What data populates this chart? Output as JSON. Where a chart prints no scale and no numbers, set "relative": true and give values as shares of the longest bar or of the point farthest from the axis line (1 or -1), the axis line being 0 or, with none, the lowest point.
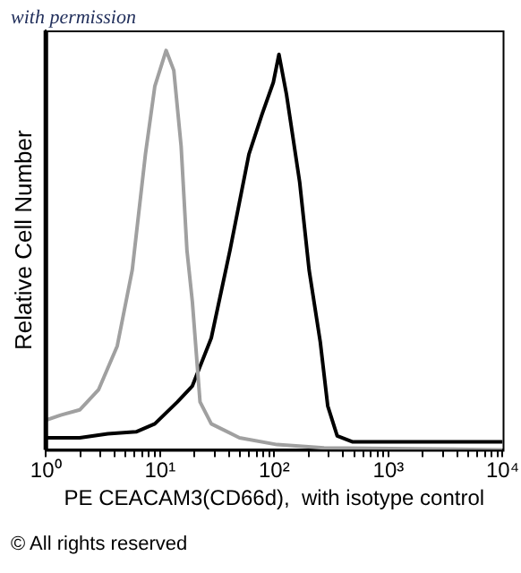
{
  "chart_data": {
    "type": "line",
    "relative": true,
    "log": "x",
    "xlabel": "PE CEACAM3(CD66d),  with isotype control",
    "ylabel": "Relative Cell Number",
    "annotations": [
      "with permission",
      "© All rights reserved"
    ],
    "xlim": [
      1,
      10000
    ],
    "xticks": [
      {
        "value": 1,
        "label": "10⁰"
      },
      {
        "value": 2,
        "label": null
      },
      {
        "value": 3,
        "label": null
      },
      {
        "value": 4,
        "label": null
      },
      {
        "value": 5,
        "label": null
      },
      {
        "value": 6,
        "label": null
      },
      {
        "value": 7,
        "label": null
      },
      {
        "value": 8,
        "label": null
      },
      {
        "value": 9,
        "label": null
      },
      {
        "value": 10,
        "label": "10¹"
      },
      {
        "value": 20,
        "label": null
      },
      {
        "value": 30,
        "label": null
      },
      {
        "value": 40,
        "label": null
      },
      {
        "value": 50,
        "label": null
      },
      {
        "value": 60,
        "label": null
      },
      {
        "value": 70,
        "label": null
      },
      {
        "value": 80,
        "label": null
      },
      {
        "value": 90,
        "label": null
      },
      {
        "value": 100,
        "label": "10²"
      },
      {
        "value": 200,
        "label": null
      },
      {
        "value": 300,
        "label": null
      },
      {
        "value": 400,
        "label": null
      },
      {
        "value": 500,
        "label": null
      },
      {
        "value": 600,
        "label": null
      },
      {
        "value": 700,
        "label": null
      },
      {
        "value": 800,
        "label": null
      },
      {
        "value": 900,
        "label": null
      },
      {
        "value": 1000,
        "label": "10³"
      },
      {
        "value": 2000,
        "label": null
      },
      {
        "value": 3000,
        "label": null
      },
      {
        "value": 4000,
        "label": null
      },
      {
        "value": 5000,
        "label": null
      },
      {
        "value": 6000,
        "label": null
      },
      {
        "value": 7000,
        "label": null
      },
      {
        "value": 8000,
        "label": null
      },
      {
        "value": 9000,
        "label": null
      },
      {
        "value": 10000,
        "label": "10⁴"
      }
    ],
    "grid": false,
    "legend": false,
    "marker": "none",
    "line_style": "solid",
    "series": [
      {
        "color": "#a0a0a0",
        "x": [
          1,
          1.35,
          1.98,
          2.89,
          4.22,
          5.71,
          7.45,
          9,
          11.3,
          13.2,
          15.3,
          17.2,
          19.2,
          22.4,
          28.1,
          49.6,
          106,
          273,
          10000
        ],
        "values": [
          0.074,
          0.087,
          0.1,
          0.15,
          0.26,
          0.45,
          0.74,
          0.91,
          1,
          0.95,
          0.76,
          0.5,
          0.37,
          0.12,
          0.065,
          0.03,
          0.013,
          0.005,
          0
        ]
      },
      {
        "color": "#000000",
        "x": [
          1,
          1.98,
          3.49,
          6.17,
          9,
          14.2,
          19.2,
          28.1,
          41,
          60,
          78.2,
          98.2,
          110,
          128,
          167,
          202,
          253,
          294,
          356,
          482,
          10000
        ],
        "values": [
          0.03,
          0.03,
          0.04,
          0.045,
          0.065,
          0.12,
          0.16,
          0.28,
          0.5,
          0.74,
          0.84,
          0.92,
          0.99,
          0.89,
          0.67,
          0.45,
          0.27,
          0.11,
          0.035,
          0.02,
          0.02
        ]
      }
    ]
  }
}
